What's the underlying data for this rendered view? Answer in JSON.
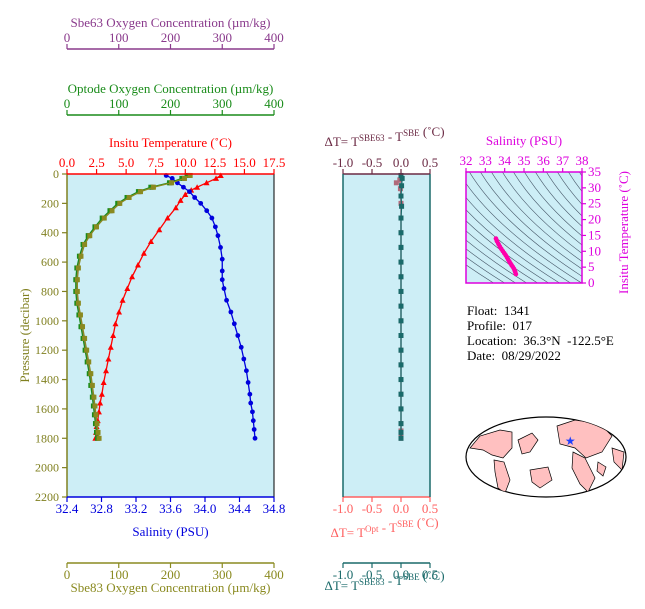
{
  "colors": {
    "sbe63": "#8a3a8c",
    "optode": "#1a8c1a",
    "temperature": "#ff0000",
    "salinity": "#0000dd",
    "pressure_axis": "#808020",
    "sbe83": "#8a8a20",
    "delta_top": "#6b2a44",
    "delta_opt": "#ff6060",
    "delta_sbe83": "#1a6a6a",
    "panel_bg": "#cdeef6",
    "ts_salinity_axis": "#dd00dd",
    "ts_points": "#ff00aa",
    "map_land": "#ffc0c0"
  },
  "info": {
    "float": "Float:  1341",
    "profile": "Profile:  017",
    "location": "Location:  36.3°N  -122.5°E",
    "date": "Date:  08/29/2022"
  },
  "map": {
    "marker_lat": 36.3,
    "marker_lon": -122.5
  },
  "chart_data": [
    {
      "type": "line",
      "name": "profile",
      "ylabel": "Pressure (decibar)",
      "ylim": [
        2200,
        0
      ],
      "yticks": [
        0,
        200,
        400,
        600,
        800,
        1000,
        1200,
        1400,
        1600,
        1800,
        2000,
        2200
      ],
      "axes": {
        "sbe63": {
          "label": "Sbe63 Oxygen Concentration (µm/kg)",
          "lim": [
            0,
            400
          ],
          "ticks": [
            0,
            100,
            200,
            300,
            400
          ]
        },
        "optode": {
          "label": "Optode Oxygen Concentration (µm/kg)",
          "lim": [
            0,
            400
          ],
          "ticks": [
            0,
            100,
            200,
            300,
            400
          ]
        },
        "temperature": {
          "label": "Insitu Temperature (˚C)",
          "lim": [
            0,
            17.5
          ],
          "ticks": [
            "0.0",
            "2.5",
            "5.0",
            "7.5",
            "10.0",
            "12.5",
            "15.0",
            "17.5"
          ]
        },
        "salinity": {
          "label": "Salinity (PSU)",
          "lim": [
            32.4,
            34.8
          ],
          "ticks": [
            "32.4",
            "32.8",
            "33.2",
            "33.6",
            "34.0",
            "34.4",
            "34.8"
          ]
        },
        "sbe83": {
          "label": "Sbe83 Oxygen Concentration (µm/kg)",
          "lim": [
            0,
            400
          ],
          "ticks": [
            0,
            100,
            200,
            300,
            400
          ]
        }
      },
      "series": [
        {
          "axis": "temperature",
          "marker": "triangle",
          "x": [
            13.0,
            12.6,
            11.8,
            11.0,
            10.5,
            10.0,
            9.6,
            9.2,
            8.5,
            7.8,
            7.1,
            6.5,
            6.0,
            5.5,
            5.1,
            4.7,
            4.4,
            4.1,
            3.9,
            3.7,
            3.5,
            3.3,
            3.1,
            2.95,
            2.8,
            2.7,
            2.6,
            2.5,
            2.45,
            2.4
          ],
          "y": [
            10,
            30,
            60,
            90,
            110,
            140,
            180,
            230,
            300,
            380,
            460,
            540,
            620,
            700,
            780,
            860,
            940,
            1020,
            1100,
            1180,
            1260,
            1340,
            1420,
            1500,
            1560,
            1620,
            1680,
            1720,
            1760,
            1800
          ]
        },
        {
          "axis": "salinity",
          "marker": "circle",
          "x": [
            33.55,
            33.62,
            33.68,
            33.75,
            33.82,
            33.88,
            33.95,
            34.02,
            34.08,
            34.12,
            34.15,
            34.18,
            34.2,
            34.2,
            34.2,
            34.22,
            34.25,
            34.3,
            34.34,
            34.38,
            34.42,
            34.45,
            34.48,
            34.5,
            34.52,
            34.53,
            34.55,
            34.56,
            34.57,
            34.58
          ],
          "y": [
            10,
            30,
            60,
            90,
            120,
            160,
            200,
            250,
            300,
            360,
            420,
            500,
            580,
            660,
            720,
            780,
            860,
            940,
            1020,
            1100,
            1180,
            1260,
            1340,
            1420,
            1500,
            1560,
            1620,
            1680,
            1740,
            1800
          ]
        },
        {
          "axis": "sbe63",
          "marker": "square",
          "x": [
            235,
            225,
            200,
            165,
            140,
            118,
            100,
            85,
            70,
            55,
            42,
            32,
            25,
            20,
            18,
            18,
            20,
            24,
            28,
            32,
            36,
            40,
            44,
            47,
            50,
            52,
            54,
            56,
            58,
            60
          ],
          "y": [
            10,
            30,
            60,
            90,
            120,
            160,
            200,
            250,
            300,
            360,
            420,
            480,
            560,
            640,
            720,
            800,
            880,
            960,
            1040,
            1120,
            1200,
            1280,
            1360,
            1440,
            1520,
            1580,
            1640,
            1700,
            1760,
            1800
          ]
        },
        {
          "axis": "optode",
          "marker": "square",
          "x": [
            232,
            222,
            198,
            162,
            138,
            116,
            98,
            83,
            68,
            54,
            41,
            31,
            24,
            19,
            17,
            17,
            19,
            23,
            27,
            31,
            35,
            39,
            43,
            46,
            49,
            51,
            53,
            55,
            57,
            59
          ],
          "y": [
            10,
            30,
            60,
            90,
            120,
            160,
            200,
            250,
            300,
            360,
            420,
            480,
            560,
            640,
            720,
            800,
            880,
            960,
            1040,
            1120,
            1200,
            1280,
            1360,
            1440,
            1520,
            1580,
            1640,
            1700,
            1760,
            1800
          ]
        },
        {
          "axis": "sbe83",
          "marker": "square",
          "x": [
            238,
            227,
            202,
            167,
            142,
            120,
            102,
            87,
            72,
            57,
            44,
            34,
            27,
            22,
            20,
            20,
            22,
            26,
            30,
            34,
            38,
            42,
            46,
            49,
            52,
            54,
            56,
            58,
            60,
            62
          ],
          "y": [
            10,
            30,
            60,
            90,
            120,
            160,
            200,
            250,
            300,
            360,
            420,
            480,
            560,
            640,
            720,
            800,
            880,
            960,
            1040,
            1120,
            1200,
            1280,
            1360,
            1440,
            1520,
            1580,
            1640,
            1700,
            1760,
            1800
          ]
        }
      ]
    },
    {
      "type": "line",
      "name": "delta",
      "xlim": [
        -1.0,
        0.5
      ],
      "xticks": [
        "-1.0",
        "-0.5",
        "0.0",
        "0.5"
      ],
      "top_label": "ΔT= T",
      "top_sup1": "SBE63",
      "top_mid": " - T",
      "top_sup2": "SBE",
      "top_end": " (˚C)",
      "opt_label": "ΔT= T",
      "opt_sup1": "Opt",
      "opt_mid": " - T",
      "opt_sup2": "SBE",
      "opt_end": " (˚C)",
      "s83_label": "ΔT= T",
      "s83_sup1": "SBE83",
      "s83_mid": " - T",
      "s83_sup2": "SBE",
      "s83_end": " (˚C)",
      "series": [
        {
          "key": "sbe63",
          "x": [
            -0.08,
            -0.02,
            -0.01,
            0.0,
            0.0,
            0.0,
            0.0,
            0.0,
            0.0,
            0.0,
            0.0,
            0.0,
            0.0,
            0.0,
            0.0,
            0.0,
            0.0,
            0.0,
            0.0,
            0.0,
            0.0,
            0.0
          ],
          "y": [
            60,
            40,
            100,
            200,
            300,
            400,
            500,
            600,
            700,
            800,
            900,
            1000,
            1100,
            1200,
            1300,
            1400,
            1500,
            1600,
            1700,
            1750,
            1780,
            1800
          ]
        },
        {
          "key": "sbe83",
          "x": [
            0.0,
            0.02,
            0.01,
            0.0,
            0.01,
            0.0,
            0.0,
            0.0,
            0.0,
            0.0,
            0.0,
            0.0,
            0.0,
            0.0,
            0.0,
            0.0,
            0.0,
            0.0,
            0.0,
            0.0,
            0.0,
            0.0
          ],
          "y": [
            10,
            30,
            80,
            150,
            220,
            300,
            400,
            500,
            600,
            700,
            800,
            900,
            1000,
            1100,
            1200,
            1300,
            1400,
            1500,
            1600,
            1700,
            1760,
            1800
          ]
        }
      ]
    },
    {
      "type": "scatter",
      "name": "ts",
      "xlabel": "Salinity (PSU)",
      "ylabel": "Insitu Temperature (˚C)",
      "xlim": [
        32,
        38
      ],
      "ylim": [
        0,
        35
      ],
      "xticks": [
        "32",
        "33",
        "34",
        "35",
        "36",
        "37",
        "38"
      ],
      "yticks": [
        "0",
        "5",
        "10",
        "15",
        "20",
        "25",
        "30",
        "35"
      ],
      "x": [
        33.55,
        33.6,
        33.68,
        33.75,
        33.82,
        33.9,
        33.98,
        34.05,
        34.12,
        34.18,
        34.24,
        34.3,
        34.36,
        34.42,
        34.48,
        34.52,
        34.55,
        34.58
      ],
      "y": [
        14.0,
        13.2,
        12.3,
        11.5,
        10.8,
        10.1,
        9.4,
        8.8,
        8.1,
        7.4,
        6.8,
        6.2,
        5.6,
        5.1,
        4.5,
        3.9,
        3.4,
        2.8
      ]
    }
  ]
}
